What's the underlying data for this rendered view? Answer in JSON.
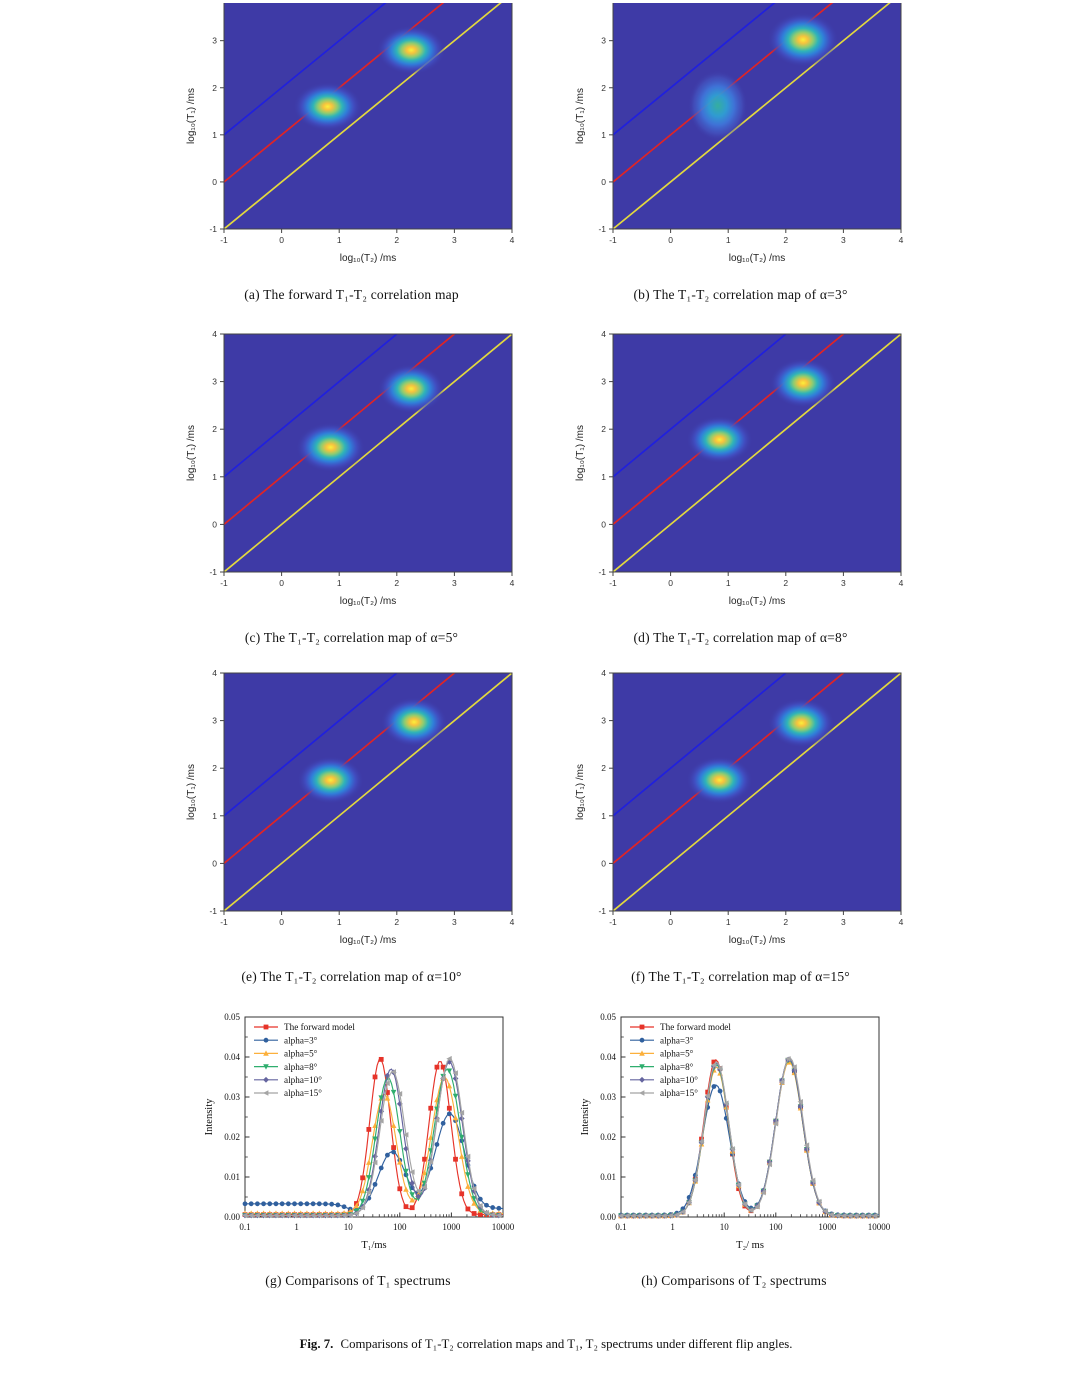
{
  "figure": {
    "label": "Fig. 7.",
    "text": "Comparisons of T₁-T₂ correlation maps and T₁, T₂ spectrums under different flip angles."
  },
  "heatmap_style": {
    "background": "#3e3aa6",
    "diag_line_blue": "#2020dd",
    "diag_line_red": "#e02425",
    "diag_line_yellow": "#e3d83e"
  },
  "chart_data": [
    {
      "id": "a",
      "type": "heatmap",
      "caption": "(a) The forward T₁-T₂ correlation map",
      "xlabel": "log₁₀(T₂) /ms",
      "ylabel": "log₁₀(T₁) /ms",
      "xlim": [
        -1,
        4
      ],
      "ylim": [
        -1,
        3.8
      ],
      "top_cropped": true,
      "xticks": [
        -1,
        0,
        1,
        2,
        3,
        4
      ],
      "yticks": [
        -1,
        0,
        1,
        2,
        3
      ],
      "diag_lines": [
        {
          "name": "T1=100*T2",
          "color": "#2020dd",
          "x0": -1,
          "y0": 1
        },
        {
          "name": "T1=10*T2",
          "color": "#e02425",
          "x0": -1,
          "y0": 0
        },
        {
          "name": "T1=T2",
          "color": "#e3d83e",
          "x0": -1,
          "y0": -1
        }
      ],
      "blobs": [
        {
          "cx": 0.8,
          "cy": 1.6,
          "rx": 0.6,
          "ry": 0.52,
          "core": "hot"
        },
        {
          "cx": 2.25,
          "cy": 2.8,
          "rx": 0.6,
          "ry": 0.52,
          "core": "hot"
        }
      ]
    },
    {
      "id": "b",
      "type": "heatmap",
      "caption": "(b) The T₁-T₂ correlation map of α=3°",
      "xlabel": "log₁₀(T₂) /ms",
      "ylabel": "log₁₀(T₁) /ms",
      "xlim": [
        -1,
        4
      ],
      "ylim": [
        -1,
        3.8
      ],
      "top_cropped": true,
      "xticks": [
        -1,
        0,
        1,
        2,
        3,
        4
      ],
      "yticks": [
        -1,
        0,
        1,
        2,
        3
      ],
      "diag_lines": [
        {
          "name": "T1=100*T2",
          "color": "#2020dd",
          "x0": -1,
          "y0": 1
        },
        {
          "name": "T1=10*T2",
          "color": "#e02425",
          "x0": -1,
          "y0": 0
        },
        {
          "name": "T1=T2",
          "color": "#e3d83e",
          "x0": -1,
          "y0": -1
        }
      ],
      "blobs": [
        {
          "cx": 0.82,
          "cy": 1.62,
          "rx": 0.52,
          "ry": 0.75,
          "core": "cool"
        },
        {
          "cx": 2.3,
          "cy": 3.02,
          "rx": 0.62,
          "ry": 0.58,
          "core": "hot"
        }
      ]
    },
    {
      "id": "c",
      "type": "heatmap",
      "caption": "(c) The T₁-T₂ correlation map of α=5°",
      "xlabel": "log₁₀(T₂) /ms",
      "ylabel": "log₁₀(T₁) /ms",
      "xlim": [
        -1,
        4
      ],
      "ylim": [
        -1,
        4
      ],
      "xticks": [
        -1,
        0,
        1,
        2,
        3,
        4
      ],
      "yticks": [
        -1,
        0,
        1,
        2,
        3,
        4
      ],
      "diag_lines": [
        {
          "name": "T1=100*T2",
          "color": "#2020dd",
          "x0": -1,
          "y0": 1
        },
        {
          "name": "T1=10*T2",
          "color": "#e02425",
          "x0": -1,
          "y0": 0
        },
        {
          "name": "T1=T2",
          "color": "#e3d83e",
          "x0": -1,
          "y0": -1
        }
      ],
      "blobs": [
        {
          "cx": 0.85,
          "cy": 1.62,
          "rx": 0.6,
          "ry": 0.52,
          "core": "hot"
        },
        {
          "cx": 2.25,
          "cy": 2.85,
          "rx": 0.58,
          "ry": 0.52,
          "core": "hot"
        }
      ]
    },
    {
      "id": "d",
      "type": "heatmap",
      "caption": "(d) The T₁-T₂ correlation map of α=8°",
      "xlabel": "log₁₀(T₂) /ms",
      "ylabel": "log₁₀(T₁) /ms",
      "xlim": [
        -1,
        4
      ],
      "ylim": [
        -1,
        4
      ],
      "xticks": [
        -1,
        0,
        1,
        2,
        3,
        4
      ],
      "yticks": [
        -1,
        0,
        1,
        2,
        3,
        4
      ],
      "diag_lines": [
        {
          "name": "T1=100*T2",
          "color": "#2020dd",
          "x0": -1,
          "y0": 1
        },
        {
          "name": "T1=10*T2",
          "color": "#e02425",
          "x0": -1,
          "y0": 0
        },
        {
          "name": "T1=T2",
          "color": "#e3d83e",
          "x0": -1,
          "y0": -1
        }
      ],
      "blobs": [
        {
          "cx": 0.85,
          "cy": 1.78,
          "rx": 0.58,
          "ry": 0.5,
          "core": "hot"
        },
        {
          "cx": 2.3,
          "cy": 2.97,
          "rx": 0.58,
          "ry": 0.52,
          "core": "hot"
        }
      ]
    },
    {
      "id": "e",
      "type": "heatmap",
      "caption": "(e) The T₁-T₂ correlation map of α=10°",
      "xlabel": "log₁₀(T₂) /ms",
      "ylabel": "log₁₀(T₁) /ms",
      "xlim": [
        -1,
        4
      ],
      "ylim": [
        -1,
        4
      ],
      "xticks": [
        -1,
        0,
        1,
        2,
        3,
        4
      ],
      "yticks": [
        -1,
        0,
        1,
        2,
        3,
        4
      ],
      "diag_lines": [
        {
          "name": "T1=100*T2",
          "color": "#2020dd",
          "x0": -1,
          "y0": 1
        },
        {
          "name": "T1=10*T2",
          "color": "#e02425",
          "x0": -1,
          "y0": 0
        },
        {
          "name": "T1=T2",
          "color": "#e3d83e",
          "x0": -1,
          "y0": -1
        }
      ],
      "blobs": [
        {
          "cx": 0.85,
          "cy": 1.75,
          "rx": 0.58,
          "ry": 0.5,
          "core": "hot"
        },
        {
          "cx": 2.3,
          "cy": 2.97,
          "rx": 0.58,
          "ry": 0.52,
          "core": "hot"
        }
      ]
    },
    {
      "id": "f",
      "type": "heatmap",
      "caption": "(f) The T₁-T₂ correlation map of α=15°",
      "xlabel": "log₁₀(T₂) /ms",
      "ylabel": "log₁₀(T₁) /ms",
      "xlim": [
        -1,
        4
      ],
      "ylim": [
        -1,
        4
      ],
      "xticks": [
        -1,
        0,
        1,
        2,
        3,
        4
      ],
      "yticks": [
        -1,
        0,
        1,
        2,
        3,
        4
      ],
      "diag_lines": [
        {
          "name": "T1=100*T2",
          "color": "#2020dd",
          "x0": -1,
          "y0": 1
        },
        {
          "name": "T1=10*T2",
          "color": "#e02425",
          "x0": -1,
          "y0": 0
        },
        {
          "name": "T1=T2",
          "color": "#e3d83e",
          "x0": -1,
          "y0": -1
        }
      ],
      "blobs": [
        {
          "cx": 0.85,
          "cy": 1.75,
          "rx": 0.58,
          "ry": 0.5,
          "core": "hot"
        },
        {
          "cx": 2.27,
          "cy": 2.95,
          "rx": 0.58,
          "ry": 0.52,
          "core": "hot"
        }
      ]
    },
    {
      "id": "g",
      "type": "line",
      "caption": "(g) Comparisons of T₁ spectrums",
      "xlabel": "T₁/ms",
      "ylabel": "Intensity",
      "x_log_range": [
        -1,
        4
      ],
      "xtick_labels": [
        "0.1",
        "1",
        "10",
        "100",
        "1000",
        "10000"
      ],
      "ylim": [
        0,
        0.05
      ],
      "yticks": [
        0.0,
        0.01,
        0.02,
        0.03,
        0.04,
        0.05
      ],
      "legend_position": "top-left",
      "series": [
        {
          "name": "The forward model",
          "color": "#e63329",
          "marker": "square",
          "baseline": 0.0006,
          "peaks": [
            {
              "center_ms": 42,
              "log_center": 1.62,
              "amp": 0.039,
              "sigma": 0.2
            },
            {
              "center_ms": 600,
              "log_center": 2.78,
              "amp": 0.0384,
              "sigma": 0.21
            }
          ]
        },
        {
          "name": "alpha=3°",
          "color": "#30609e",
          "marker": "circle",
          "baseline": 0.0008,
          "plateau": {
            "level": 0.0025,
            "end": 1.0
          },
          "tail": {
            "level": 0.0013,
            "start": 3.6
          },
          "peaks": [
            {
              "center_ms": 71,
              "log_center": 1.85,
              "amp": 0.0155,
              "sigma": 0.27
            },
            {
              "center_ms": 930,
              "log_center": 2.97,
              "amp": 0.025,
              "sigma": 0.29
            }
          ]
        },
        {
          "name": "alpha=5°",
          "color": "#fcb03c",
          "marker": "triangle-up",
          "baseline": 0.0009,
          "peaks": [
            {
              "center_ms": 50,
              "log_center": 1.7,
              "amp": 0.0298,
              "sigma": 0.23
            },
            {
              "center_ms": 740,
              "log_center": 2.87,
              "amp": 0.034,
              "sigma": 0.25
            }
          ]
        },
        {
          "name": "alpha=8°",
          "color": "#2fae6e",
          "marker": "triangle-down",
          "baseline": 0.0004,
          "peaks": [
            {
              "center_ms": 59,
              "log_center": 1.77,
              "amp": 0.0345,
              "sigma": 0.23
            },
            {
              "center_ms": 830,
              "log_center": 2.92,
              "amp": 0.0366,
              "sigma": 0.25
            }
          ]
        },
        {
          "name": "alpha=10°",
          "color": "#65659f",
          "marker": "diamond",
          "baseline": 0.0004,
          "peaks": [
            {
              "center_ms": 68,
              "log_center": 1.83,
              "amp": 0.0366,
              "sigma": 0.23
            },
            {
              "center_ms": 910,
              "log_center": 2.96,
              "amp": 0.0384,
              "sigma": 0.25
            }
          ]
        },
        {
          "name": "alpha=15°",
          "color": "#a5a5a5",
          "marker": "triangle-left",
          "baseline": 0.0004,
          "peaks": [
            {
              "center_ms": 72,
              "log_center": 1.86,
              "amp": 0.036,
              "sigma": 0.24
            },
            {
              "center_ms": 930,
              "log_center": 2.97,
              "amp": 0.0392,
              "sigma": 0.25
            }
          ]
        }
      ]
    },
    {
      "id": "h",
      "type": "line",
      "caption": "(h) Comparisons of T₂ spectrums",
      "xlabel": "T₂/ ms",
      "ylabel": "Intensity",
      "x_log_range": [
        -1,
        4
      ],
      "xtick_labels": [
        "0.1",
        "1",
        "10",
        "100",
        "1000",
        "10000"
      ],
      "ylim": [
        0,
        0.05
      ],
      "yticks": [
        0.0,
        0.01,
        0.02,
        0.03,
        0.04,
        0.05
      ],
      "legend_position": "top-left",
      "series": [
        {
          "name": "The forward model",
          "color": "#e63329",
          "marker": "square",
          "baseline": 0.0003,
          "peaks": [
            {
              "center_ms": 7,
              "log_center": 0.84,
              "amp": 0.039,
              "sigma": 0.235
            },
            {
              "center_ms": 180,
              "log_center": 2.26,
              "amp": 0.039,
              "sigma": 0.26
            }
          ]
        },
        {
          "name": "alpha=3°",
          "color": "#30609e",
          "marker": "circle",
          "baseline": 0.0005,
          "peaks": [
            {
              "center_ms": 7,
              "log_center": 0.84,
              "amp": 0.0325,
              "sigma": 0.26
            },
            {
              "center_ms": 180,
              "log_center": 2.26,
              "amp": 0.0386,
              "sigma": 0.26
            }
          ]
        },
        {
          "name": "alpha=5°",
          "color": "#fcb03c",
          "marker": "triangle-up",
          "baseline": 0.0003,
          "peaks": [
            {
              "center_ms": 7,
              "log_center": 0.85,
              "amp": 0.0372,
              "sigma": 0.24
            },
            {
              "center_ms": 180,
              "log_center": 2.26,
              "amp": 0.0385,
              "sigma": 0.26
            }
          ]
        },
        {
          "name": "alpha=8°",
          "color": "#2fae6e",
          "marker": "triangle-down",
          "baseline": 0.0003,
          "peaks": [
            {
              "center_ms": 7,
              "log_center": 0.85,
              "amp": 0.0378,
              "sigma": 0.24
            },
            {
              "center_ms": 180,
              "log_center": 2.26,
              "amp": 0.039,
              "sigma": 0.26
            }
          ]
        },
        {
          "name": "alpha=10°",
          "color": "#65659f",
          "marker": "diamond",
          "baseline": 0.0003,
          "peaks": [
            {
              "center_ms": 7,
              "log_center": 0.85,
              "amp": 0.0382,
              "sigma": 0.24
            },
            {
              "center_ms": 180,
              "log_center": 2.26,
              "amp": 0.0392,
              "sigma": 0.26
            }
          ]
        },
        {
          "name": "alpha=15°",
          "color": "#a5a5a5",
          "marker": "triangle-left",
          "baseline": 0.0003,
          "peaks": [
            {
              "center_ms": 7,
              "log_center": 0.85,
              "amp": 0.0385,
              "sigma": 0.24
            },
            {
              "center_ms": 185,
              "log_center": 2.27,
              "amp": 0.0395,
              "sigma": 0.26
            }
          ]
        }
      ]
    }
  ]
}
